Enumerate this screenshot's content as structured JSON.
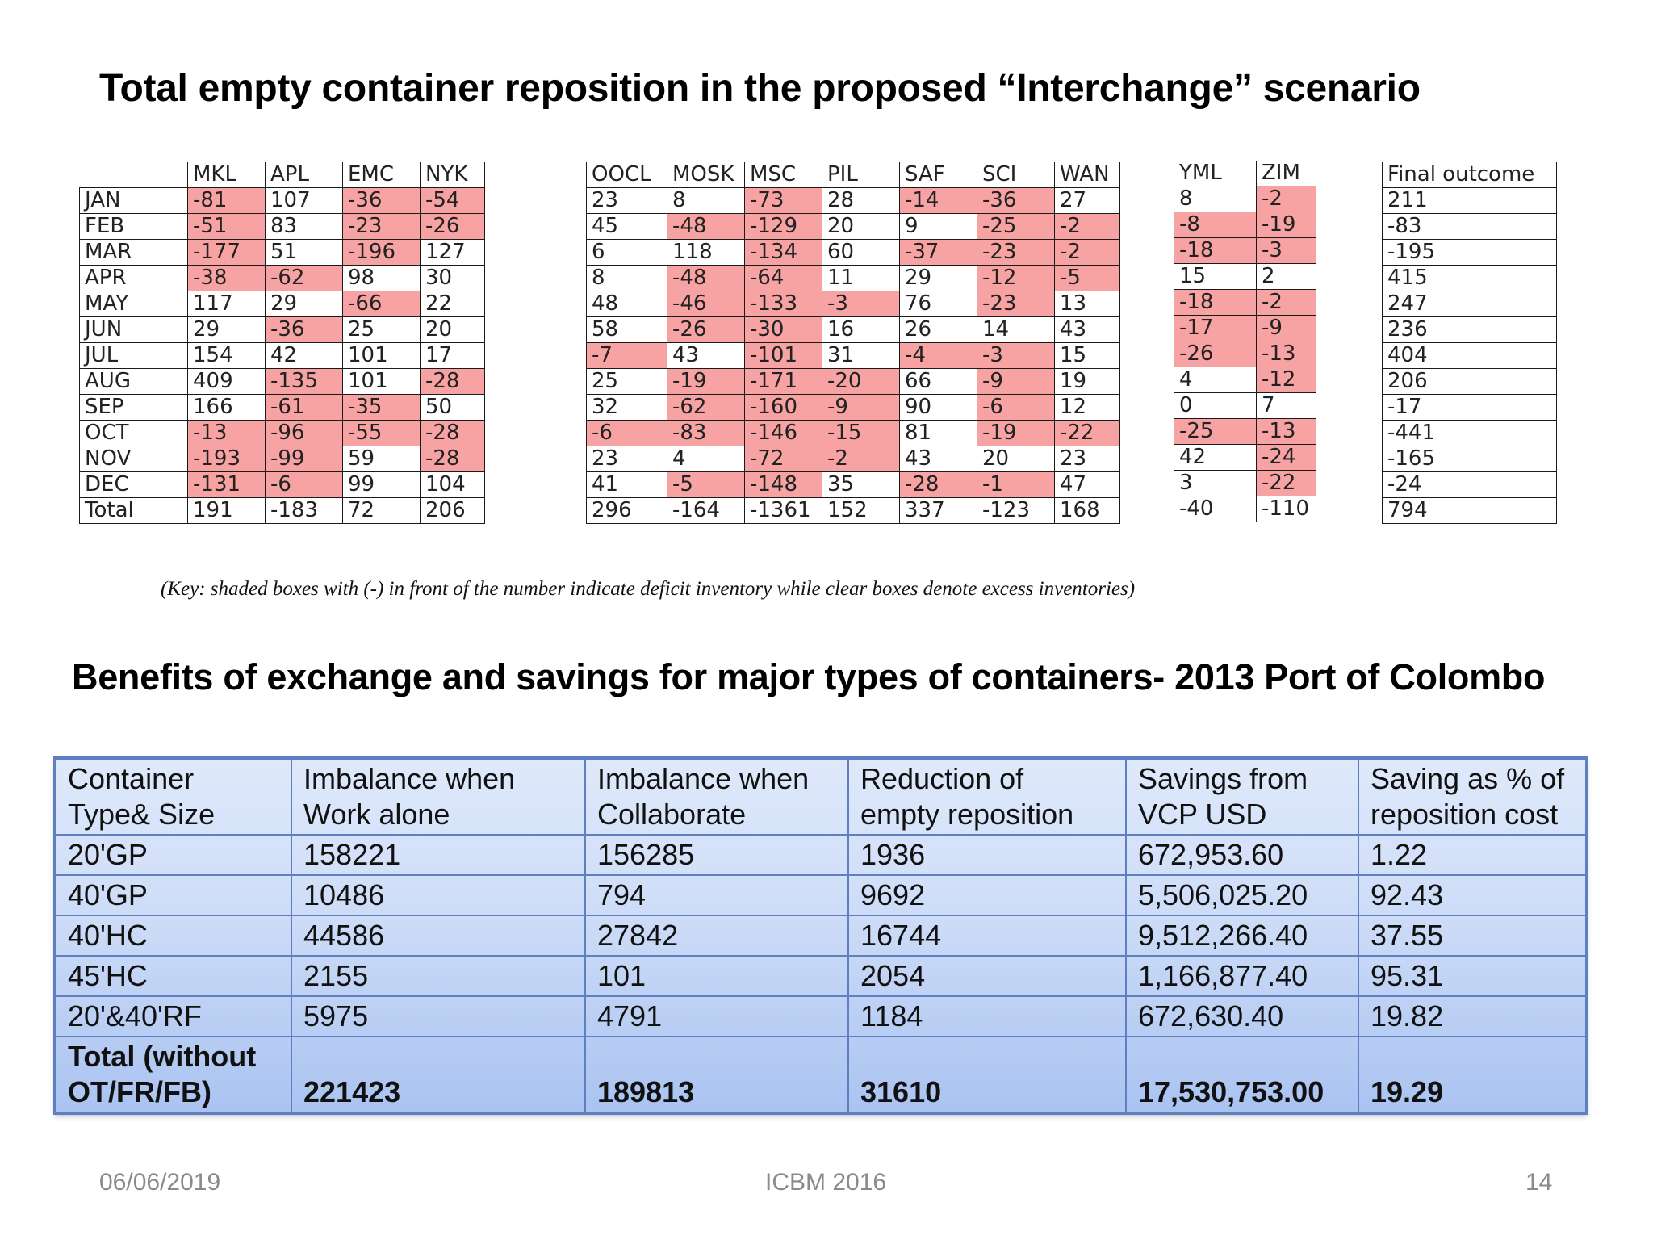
{
  "title": "Total empty container reposition in the proposed “Interchange” scenario",
  "table1": {
    "headers": [
      "MKL",
      "APL",
      "EMC",
      "NYK"
    ],
    "months": [
      "JAN",
      "FEB",
      "MAR",
      "APR",
      "MAY",
      "JUN",
      "JUL",
      "AUG",
      "SEP",
      "OCT",
      "NOV",
      "DEC",
      "Total"
    ],
    "rows": [
      [
        "-81",
        "107",
        "-36",
        "-54"
      ],
      [
        "-51",
        "83",
        "-23",
        "-26"
      ],
      [
        "-177",
        "51",
        "-196",
        "127"
      ],
      [
        "-38",
        "-62",
        "98",
        "30"
      ],
      [
        "117",
        "29",
        "-66",
        "22"
      ],
      [
        "29",
        "-36",
        "25",
        "20"
      ],
      [
        "154",
        "42",
        "101",
        "17"
      ],
      [
        "409",
        "-135",
        "101",
        "-28"
      ],
      [
        "166",
        "-61",
        "-35",
        "50"
      ],
      [
        "-13",
        "-96",
        "-55",
        "-28"
      ],
      [
        "-193",
        "-99",
        "59",
        "-28"
      ],
      [
        "-131",
        "-6",
        "99",
        "104"
      ],
      [
        "191",
        "-183",
        "72",
        "206"
      ]
    ]
  },
  "table2": {
    "headers": [
      "OOCL",
      "MOSK",
      "MSC",
      "PIL",
      "SAF",
      "SCI",
      "WAN"
    ],
    "rows": [
      [
        "23",
        "8",
        "-73",
        "28",
        "-14",
        "-36",
        "27"
      ],
      [
        "45",
        "-48",
        "-129",
        "20",
        "9",
        "-25",
        "-2"
      ],
      [
        "6",
        "118",
        "-134",
        "60",
        "-37",
        "-23",
        "-2"
      ],
      [
        "8",
        "-48",
        "-64",
        "11",
        "29",
        "-12",
        "-5"
      ],
      [
        "48",
        "-46",
        "-133",
        "-3",
        "76",
        "-23",
        "13"
      ],
      [
        "58",
        "-26",
        "-30",
        "16",
        "26",
        "14",
        "43"
      ],
      [
        "-7",
        "43",
        "-101",
        "31",
        "-4",
        "-3",
        "15"
      ],
      [
        "25",
        "-19",
        "-171",
        "-20",
        "66",
        "-9",
        "19"
      ],
      [
        "32",
        "-62",
        "-160",
        "-9",
        "90",
        "-6",
        "12"
      ],
      [
        "-6",
        "-83",
        "-146",
        "-15",
        "81",
        "-19",
        "-22"
      ],
      [
        "23",
        "4",
        "-72",
        "-2",
        "43",
        "20",
        "23"
      ],
      [
        "41",
        "-5",
        "-148",
        "35",
        "-28",
        "-1",
        "47"
      ],
      [
        "296",
        "-164",
        "-1361",
        "152",
        "337",
        "-123",
        "168"
      ]
    ]
  },
  "table3": {
    "headers": [
      "YML",
      "ZIM"
    ],
    "rows": [
      [
        "8",
        "-2"
      ],
      [
        "-8",
        "-19"
      ],
      [
        "-18",
        "-3"
      ],
      [
        "15",
        "2"
      ],
      [
        "-18",
        "-2"
      ],
      [
        "-17",
        "-9"
      ],
      [
        "-26",
        "-13"
      ],
      [
        "4",
        "-12"
      ],
      [
        "0",
        "7"
      ],
      [
        "-25",
        "-13"
      ],
      [
        "42",
        "-24"
      ],
      [
        "3",
        "-22"
      ],
      [
        "-40",
        "-110"
      ]
    ]
  },
  "table4": {
    "header": "Final outcome",
    "rows": [
      "211",
      "-83",
      "-195",
      "415",
      "247",
      "236",
      "404",
      "206",
      "-17",
      "-441",
      "-165",
      "-24",
      "794"
    ]
  },
  "key_note": "(Key: shaded boxes with (-) in front of the number indicate deficit inventory while clear boxes denote excess inventories)",
  "title2": "Benefits of exchange and savings for major types of containers- 2013 Port of Colombo",
  "benefits": {
    "headers": [
      [
        "Container",
        "Type& Size"
      ],
      [
        "Imbalance when",
        "Work alone"
      ],
      [
        "Imbalance when",
        "Collaborate"
      ],
      [
        "Reduction of",
        "empty reposition"
      ],
      [
        "Savings from",
        "VCP  USD"
      ],
      [
        "Saving as % of",
        "reposition cost"
      ]
    ],
    "rows": [
      [
        "20'GP",
        "158221",
        "156285",
        "1936",
        "672,953.60",
        "1.22"
      ],
      [
        "40'GP",
        "10486",
        "794",
        "9692",
        "5,506,025.20",
        "92.43"
      ],
      [
        "40'HC",
        "44586",
        "27842",
        "16744",
        "9,512,266.40",
        "37.55"
      ],
      [
        "45'HC",
        "2155",
        "101",
        "2054",
        "1,166,877.40",
        "95.31"
      ],
      [
        "20'&40'RF",
        "5975",
        "4791",
        "1184",
        "672,630.40",
        "19.82"
      ]
    ],
    "total": {
      "label": [
        "Total (without",
        "OT/FR/FB)"
      ],
      "values": [
        "221423",
        "189813",
        "31610",
        "17,530,753.00",
        "19.29"
      ]
    }
  },
  "footer": {
    "date": "06/06/2019",
    "event": "ICBM 2016",
    "page": "14"
  },
  "colors": {
    "deficit_shade": "#f7a3a3",
    "benefits_table_border": "#5e7fc0",
    "benefits_table_fill": "#cddcf7",
    "footer_text": "#8a8a8a"
  }
}
